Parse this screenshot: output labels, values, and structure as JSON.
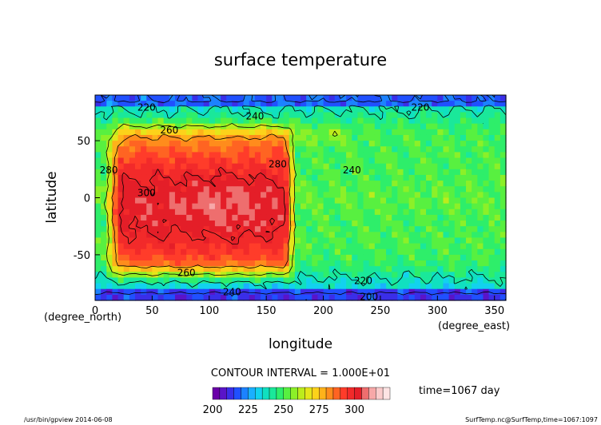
{
  "chart_data": {
    "type": "heatmap",
    "title": "surface temperature",
    "xlabel": "longitude",
    "ylabel": "latitude",
    "xunit": "(degree_east)",
    "yunit": "(degree_north)",
    "xlim": [
      0,
      360
    ],
    "ylim": [
      -90,
      90
    ],
    "x_ticks": [
      0,
      50,
      100,
      150,
      200,
      250,
      300,
      350
    ],
    "y_ticks": [
      -50,
      0,
      50
    ],
    "contour_interval_text": "CONTOUR INTERVAL = 1.000E+01",
    "contour_labels": [
      {
        "text": "220",
        "lon": 45,
        "lat": 80
      },
      {
        "text": "240",
        "lon": 140,
        "lat": 72
      },
      {
        "text": "220",
        "lon": 285,
        "lat": 80
      },
      {
        "text": "260",
        "lon": 65,
        "lat": 60
      },
      {
        "text": "280",
        "lon": 160,
        "lat": 30
      },
      {
        "text": "280",
        "lon": 12,
        "lat": 25
      },
      {
        "text": "300",
        "lon": 45,
        "lat": 5
      },
      {
        "text": "240",
        "lon": 225,
        "lat": 25
      },
      {
        "text": "260",
        "lon": 80,
        "lat": -65
      },
      {
        "text": "240",
        "lon": 120,
        "lat": -82
      },
      {
        "text": "220",
        "lon": 235,
        "lat": -72
      },
      {
        "text": "200",
        "lon": 240,
        "lat": -86
      }
    ],
    "colorbar": {
      "min": 200,
      "max": 325,
      "step": 5,
      "tick_labels": [
        "200",
        "225",
        "250",
        "275",
        "300"
      ],
      "colors": [
        "#6a00a8",
        "#5a14c8",
        "#3a2ee8",
        "#2050ff",
        "#1c82ff",
        "#1ab0ff",
        "#12d2ee",
        "#10e0c0",
        "#1ae89a",
        "#2eee6a",
        "#58f040",
        "#8cf028",
        "#bcec1c",
        "#e4e61a",
        "#fcd21a",
        "#ffb21a",
        "#ff8c1c",
        "#ff6422",
        "#ff3c2a",
        "#f22a2a",
        "#e41e28",
        "#ee6e6e",
        "#f7a8a8",
        "#fbcccc",
        "#fde4e4"
      ]
    },
    "field": {
      "desc": "surface temperature field in K; warm continents lon 15-165 (max >300), lon 175 sharp boundary, cold ocean 200-360 (240-260), polar cold < 220"
    }
  },
  "time_text": "time=1067 day",
  "footer": {
    "left": "/usr/bin/gpview  2014-06-08",
    "right": "SurfTemp.nc@SurfTemp,time=1067:1097"
  }
}
